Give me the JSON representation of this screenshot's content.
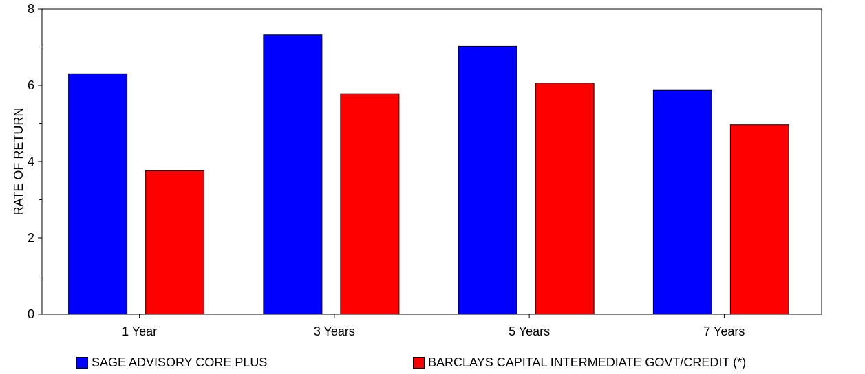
{
  "chart_data": {
    "type": "bar",
    "categories": [
      "1 Year",
      "3 Years",
      "5 Years",
      "7 Years"
    ],
    "series": [
      {
        "name": "SAGE ADVISORY CORE PLUS",
        "color": "#0000ff",
        "values": [
          6.3,
          7.32,
          7.02,
          5.87
        ]
      },
      {
        "name": "BARCLAYS CAPITAL INTERMEDIATE GOVT/CREDIT (*)",
        "color": "#ff0000",
        "values": [
          3.76,
          5.78,
          6.06,
          4.96
        ]
      }
    ],
    "xlabel": "",
    "ylabel": "RATE OF RETURN",
    "ylim": [
      0,
      8
    ],
    "yticks": [
      "0",
      "2",
      "4",
      "6",
      "8"
    ],
    "grid": false,
    "legend_position": "bottom"
  }
}
